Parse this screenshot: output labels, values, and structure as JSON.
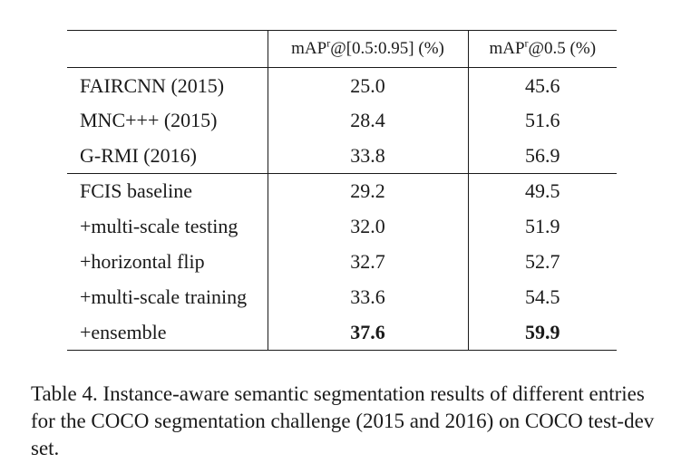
{
  "table": {
    "headers": {
      "method": "",
      "col1_prefix": "mAP",
      "col1_sup": "r",
      "col1_suffix": "@[0.5:0.95] (%)",
      "col2_prefix": "mAP",
      "col2_sup": "r",
      "col2_suffix": "@0.5 (%)"
    },
    "group1": [
      {
        "method": "FAIRCNN (2015)",
        "v1": "25.0",
        "v2": "45.6"
      },
      {
        "method": "MNC+++ (2015)",
        "v1": "28.4",
        "v2": "51.6"
      },
      {
        "method": "G-RMI (2016)",
        "v1": "33.8",
        "v2": "56.9"
      }
    ],
    "group2": [
      {
        "method": "FCIS baseline",
        "v1": "29.2",
        "v2": "49.5"
      },
      {
        "method": "+multi-scale testing",
        "v1": "32.0",
        "v2": "51.9"
      },
      {
        "method": "+horizontal flip",
        "v1": "32.7",
        "v2": "52.7"
      },
      {
        "method": "+multi-scale training",
        "v1": "33.6",
        "v2": "54.5"
      },
      {
        "method": "+ensemble",
        "v1": "37.6",
        "v2": "59.9"
      }
    ]
  },
  "caption": "Table 4. Instance-aware semantic segmentation results of different entries for the COCO segmentation challenge (2015 and 2016) on COCO test-dev set."
}
